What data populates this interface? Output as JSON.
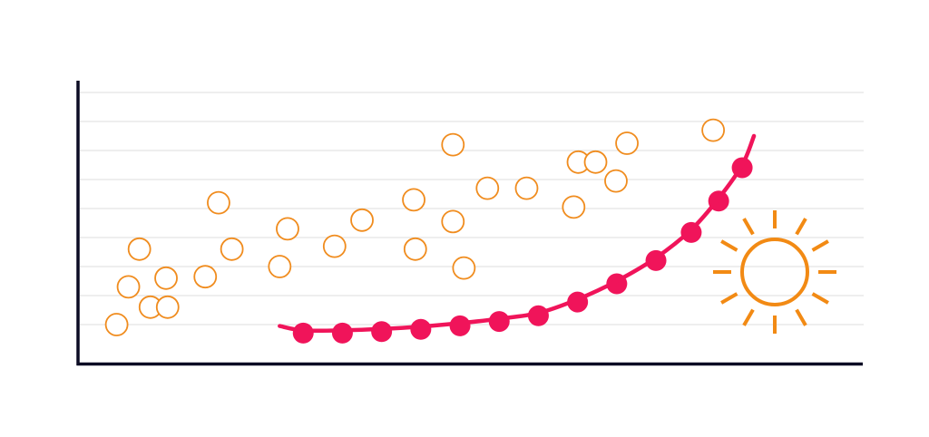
{
  "chart_data": {
    "type": "scatter",
    "title": "",
    "xlabel": "",
    "ylabel": "",
    "xlim": [
      0,
      100
    ],
    "ylim": [
      0,
      8
    ],
    "grid": true,
    "colors": {
      "scatter": "#f08c1e",
      "curve": "#f0145a",
      "sun": "#f28a14",
      "axis": "#0c0c24",
      "grid": "#e3e3e3"
    },
    "series": [
      {
        "kind": "scatter-open",
        "points": [
          [
            4.7,
            0.0
          ],
          [
            6.2,
            1.3
          ],
          [
            7.6,
            2.6
          ],
          [
            9.0,
            0.6
          ],
          [
            11.2,
            0.6
          ],
          [
            11.0,
            1.6
          ],
          [
            16.0,
            1.65
          ],
          [
            17.7,
            4.2
          ],
          [
            19.4,
            2.6
          ],
          [
            25.5,
            2.0
          ],
          [
            26.5,
            3.3
          ],
          [
            32.5,
            2.7
          ],
          [
            36.0,
            3.6
          ],
          [
            42.6,
            4.3
          ],
          [
            42.8,
            2.6
          ],
          [
            47.6,
            3.55
          ],
          [
            47.6,
            6.2
          ],
          [
            49.0,
            1.95
          ],
          [
            52.0,
            4.7
          ],
          [
            57.0,
            4.7
          ],
          [
            63.0,
            4.05
          ],
          [
            63.6,
            5.6
          ],
          [
            65.8,
            5.6
          ],
          [
            68.4,
            4.95
          ],
          [
            69.8,
            6.25
          ],
          [
            80.8,
            6.7
          ]
        ]
      },
      {
        "kind": "curve-with-markers",
        "x": [
          28.5,
          33.5,
          38.5,
          43.5,
          48.5,
          53.5,
          58.5,
          63.5,
          68.5,
          73.5,
          78.0,
          81.5,
          84.5,
          86.0
        ],
        "y": [
          -0.2,
          -0.2,
          -0.15,
          -0.07,
          0.05,
          0.2,
          0.4,
          0.87,
          1.5,
          2.3,
          3.27,
          4.35,
          5.5,
          6.5
        ]
      }
    ],
    "decoration": "sun-icon"
  }
}
